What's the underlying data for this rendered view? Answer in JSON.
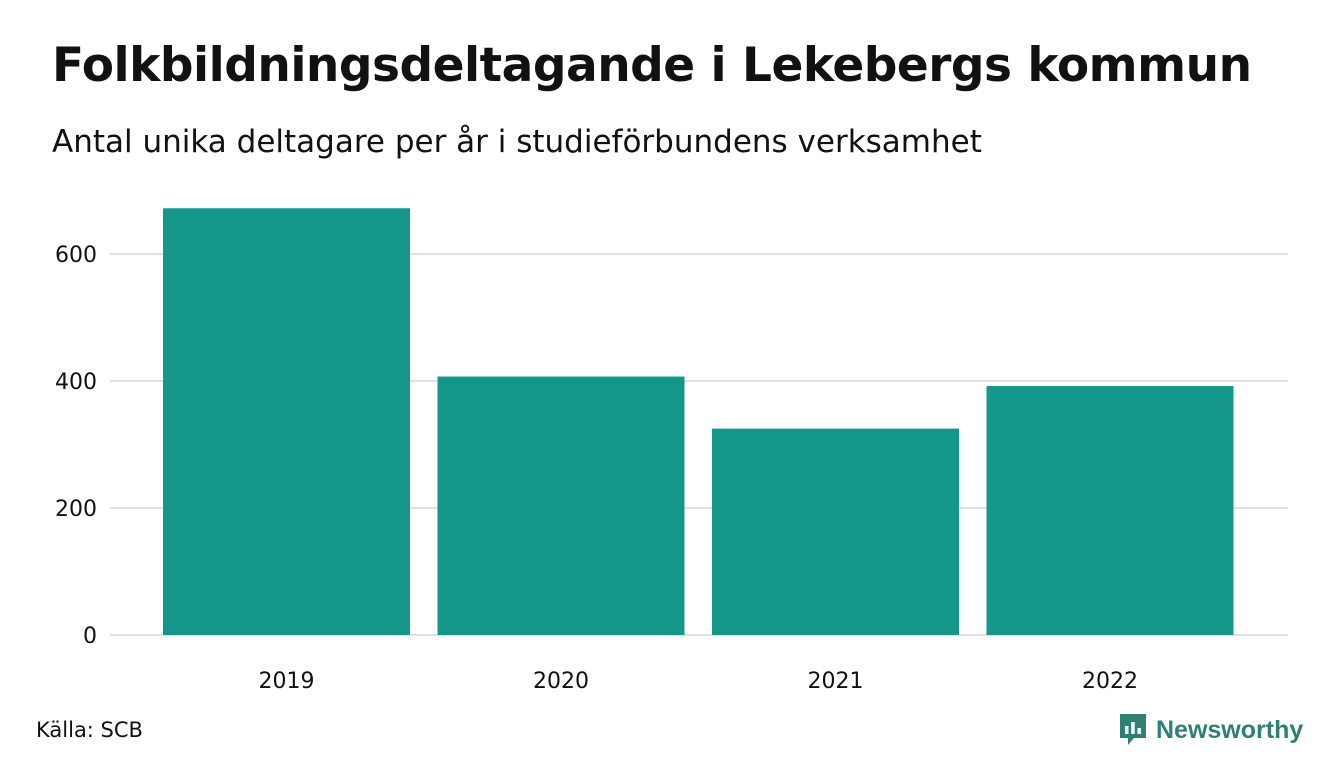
{
  "header": {
    "title": "Folkbildningsdeltagande i Lekebergs kommun",
    "subtitle": "Antal unika deltagare per år i studieförbundens verksamhet"
  },
  "footer": {
    "source": "Källa: SCB",
    "brand": "Newsworthy"
  },
  "colors": {
    "bar": "#15968a",
    "grid": "#e0e0e0",
    "brand": "#2f7f75"
  },
  "chart_data": {
    "type": "bar",
    "categories": [
      "2019",
      "2020",
      "2021",
      "2022"
    ],
    "values": [
      672,
      407,
      325,
      392
    ],
    "title": "Folkbildningsdeltagande i Lekebergs kommun",
    "subtitle": "Antal unika deltagare per år i studieförbundens verksamhet",
    "xlabel": "",
    "ylabel": "",
    "ylim": [
      0,
      700
    ],
    "yticks": [
      0,
      200,
      400,
      600
    ],
    "grid": true,
    "legend": "none"
  }
}
